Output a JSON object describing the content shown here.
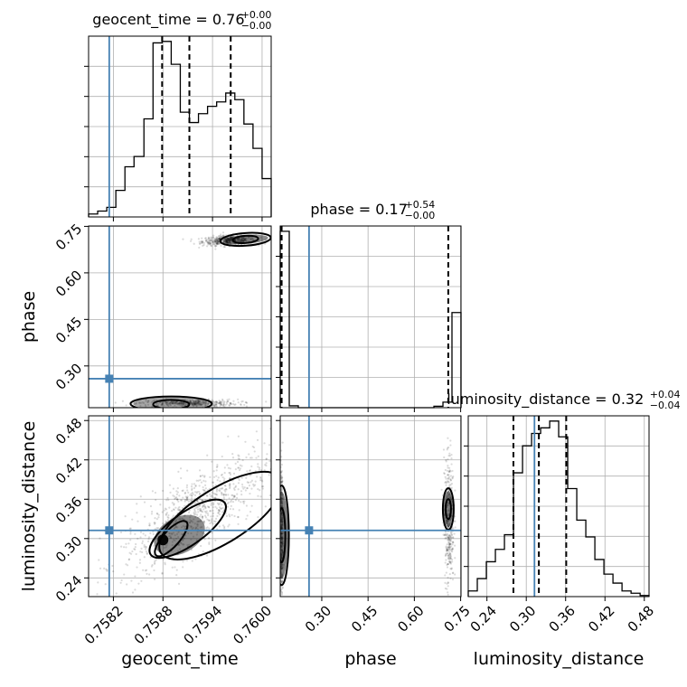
{
  "chart_data": {
    "type": "corner",
    "params": [
      "geocent_time",
      "phase",
      "luminosity_distance"
    ],
    "truths": {
      "geocent_time": 0.75815,
      "phase": 0.2588,
      "luminosity_distance": 0.3125
    },
    "colors": {
      "truth": "#4682b4",
      "hist": "#000000",
      "grid": "#b0b0b0"
    },
    "titles": [
      {
        "param": "geocent_time",
        "main": "geocent_time = 0.76",
        "plus": "+0.00",
        "minus": "−0.00"
      },
      {
        "param": "phase",
        "main": "phase = 0.17",
        "plus": "+0.54",
        "minus": "−0.00"
      },
      {
        "param": "luminosity_distance",
        "main": "luminosity_distance = 0.32",
        "plus": "+0.04",
        "minus": "−0.04"
      }
    ],
    "axes": {
      "geocent_time": {
        "label": "geocent_time",
        "range": [
          0.7579,
          0.76011
        ],
        "ticks": [
          0.7582,
          0.7588,
          0.7594,
          0.76
        ],
        "ticklabels": [
          "0.7582",
          "0.7588",
          "0.7594",
          "0.7600"
        ]
      },
      "phase": {
        "label": "phase",
        "range": [
          0.1654,
          0.7512
        ],
        "ticks": [
          0.3,
          0.45,
          0.6,
          0.75
        ],
        "ticklabels": [
          "0.30",
          "0.45",
          "0.60",
          "0.75"
        ]
      },
      "luminosity_distance": {
        "label": "luminosity_distance",
        "range": [
          0.2115,
          0.4872
        ],
        "ticks": [
          0.24,
          0.3,
          0.36,
          0.42,
          0.48
        ],
        "ticklabels": [
          "0.24",
          "0.30",
          "0.36",
          "0.42",
          "0.48"
        ]
      }
    },
    "histograms": {
      "geocent_time": {
        "bins": [
          0.7579,
          0.75801,
          0.75812,
          0.75823,
          0.75834,
          0.75845,
          0.75857,
          0.75868,
          0.75879,
          0.7589,
          0.75901,
          0.75912,
          0.75923,
          0.75934,
          0.75945,
          0.75956,
          0.75967,
          0.75978,
          0.75989,
          0.76,
          0.76011
        ],
        "counts": [
          0.4,
          0.8,
          1.3,
          3.6,
          6.8,
          8.2,
          13.3,
          23.6,
          23.8,
          20.7,
          14.2,
          12.8,
          14.0,
          15.0,
          15.6,
          16.8,
          15.9,
          12.6,
          9.3,
          5.2
        ],
        "quantiles": [
          0.75879,
          0.75912,
          0.75962
        ]
      },
      "phase": {
        "bins": [
          0.1654,
          0.1947,
          0.224,
          0.2533,
          0.2826,
          0.3119,
          0.3412,
          0.3705,
          0.3997,
          0.429,
          0.4583,
          0.4876,
          0.5169,
          0.5462,
          0.5755,
          0.6048,
          0.6341,
          0.6634,
          0.6927,
          0.7219,
          0.7512
        ],
        "counts": [
          38,
          0.4,
          0,
          0,
          0,
          0,
          0,
          0,
          0,
          0,
          0,
          0,
          0,
          0,
          0,
          0,
          0,
          0.3,
          1.2,
          20.5
        ],
        "quantiles": [
          0.1668,
          0.17,
          0.7099
        ]
      },
      "luminosity_distance": {
        "bins": [
          0.2115,
          0.2253,
          0.2391,
          0.2529,
          0.2667,
          0.2805,
          0.2943,
          0.3081,
          0.3219,
          0.3357,
          0.3494,
          0.3632,
          0.377,
          0.3908,
          0.4046,
          0.4184,
          0.4322,
          0.446,
          0.4598,
          0.4736,
          0.4872
        ],
        "counts": [
          0.5,
          1.6,
          3.1,
          4.2,
          5.5,
          11.0,
          13.4,
          14.5,
          15.0,
          15.6,
          14.2,
          9.6,
          6.8,
          5.3,
          3.3,
          2.0,
          1.2,
          0.5,
          0.3,
          0.1
        ],
        "quantiles": [
          0.2804,
          0.3192,
          0.3609
        ]
      }
    },
    "joint_2d": [
      {
        "x": "geocent_time",
        "y": "phase"
      },
      {
        "x": "geocent_time",
        "y": "luminosity_distance"
      },
      {
        "x": "phase",
        "y": "luminosity_distance"
      }
    ]
  }
}
